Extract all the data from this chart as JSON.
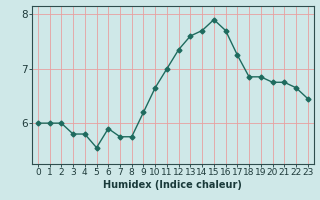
{
  "x": [
    0,
    1,
    2,
    3,
    4,
    5,
    6,
    7,
    8,
    9,
    10,
    11,
    12,
    13,
    14,
    15,
    16,
    17,
    18,
    19,
    20,
    21,
    22,
    23
  ],
  "y": [
    6.0,
    6.0,
    6.0,
    5.8,
    5.8,
    5.55,
    5.9,
    5.75,
    5.75,
    6.2,
    6.65,
    7.0,
    7.35,
    7.6,
    7.7,
    7.9,
    7.7,
    7.25,
    6.85,
    6.85,
    6.75,
    6.75,
    6.65,
    6.45
  ],
  "line_color": "#1e6b5e",
  "marker": "D",
  "marker_size": 2.5,
  "bg_color": "#cfe8e8",
  "vgrid_color": "#e8a0a0",
  "hgrid_color": "#e8a0a0",
  "axis_color": "#2e4d4d",
  "tick_color": "#1e3a3a",
  "xlabel": "Humidex (Indice chaleur)",
  "xlabel_fontsize": 7,
  "xlabel_color": "#1a3a3a",
  "ytick_labels": [
    "6",
    "7",
    "8"
  ],
  "ytick_values": [
    6,
    7,
    8
  ],
  "xtick_labels": [
    "0",
    "1",
    "2",
    "3",
    "4",
    "5",
    "6",
    "7",
    "8",
    "9",
    "10",
    "11",
    "12",
    "13",
    "14",
    "15",
    "16",
    "17",
    "18",
    "19",
    "20",
    "21",
    "22",
    "23"
  ],
  "ylim": [
    5.25,
    8.15
  ],
  "xlim": [
    -0.5,
    23.5
  ],
  "tick_fontsize": 6.5,
  "linewidth": 1.0
}
